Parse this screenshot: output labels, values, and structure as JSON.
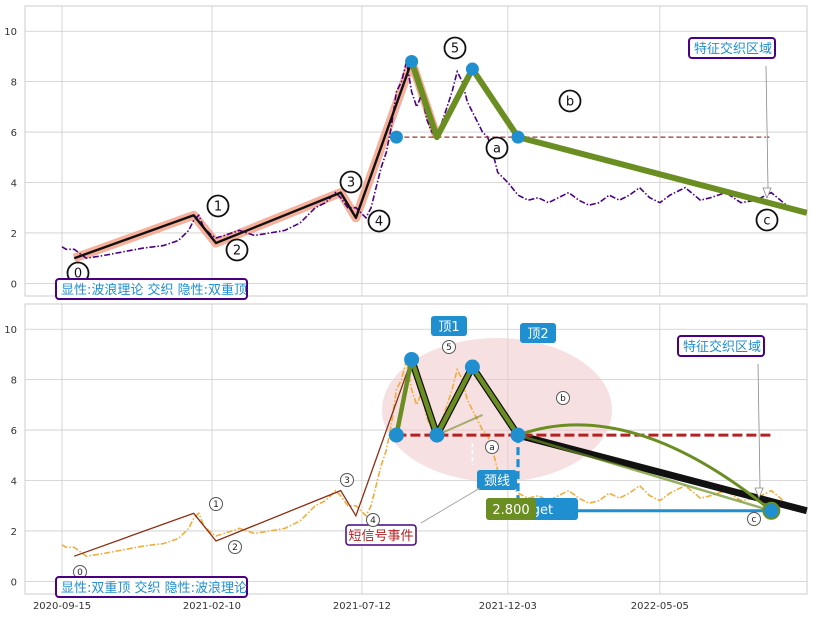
{
  "chart_data": [
    {
      "type": "line",
      "panel": "top",
      "ylim": [
        -0.5,
        11
      ],
      "yticks": [
        0,
        2,
        4,
        6,
        8,
        10
      ],
      "grid": true,
      "series": [
        {
          "style": "dash-dot",
          "color": "#4b0082",
          "x": [
            0,
            4,
            12,
            24,
            40,
            60,
            80,
            100,
            115,
            125,
            130,
            135,
            140,
            148,
            152,
            160,
            175,
            190,
            205,
            220,
            235,
            250,
            260,
            270,
            275,
            282,
            290,
            300,
            305,
            310,
            315,
            320,
            325,
            330,
            335,
            340,
            345,
            350,
            355,
            360,
            365,
            370,
            375,
            380,
            385,
            390,
            395,
            400,
            405,
            410,
            415,
            420,
            425,
            430,
            440,
            450,
            460,
            470,
            480,
            490,
            500,
            510,
            520,
            530,
            540,
            550,
            560,
            570,
            580,
            590,
            600,
            615,
            630,
            640,
            655,
            670,
            685,
            700,
            715,
            725,
            735
          ],
          "y": [
            1.45,
            1.35,
            1.35,
            1.0,
            1.1,
            1.25,
            1.4,
            1.5,
            1.7,
            2.1,
            2.5,
            2.7,
            2.2,
            1.9,
            1.8,
            1.9,
            2.1,
            1.9,
            2.0,
            2.1,
            2.4,
            3.0,
            3.2,
            3.6,
            3.4,
            3.0,
            3.0,
            2.6,
            3.0,
            3.8,
            4.6,
            5.2,
            6.2,
            7.6,
            8.0,
            8.8,
            7.6,
            7.0,
            7.5,
            6.5,
            6.0,
            5.8,
            6.4,
            7.0,
            7.6,
            8.4,
            8.0,
            7.2,
            6.8,
            6.4,
            6.0,
            5.8,
            5.2,
            4.4,
            4.0,
            3.5,
            3.3,
            3.4,
            3.2,
            3.4,
            3.6,
            3.3,
            3.1,
            3.2,
            3.5,
            3.3,
            3.5,
            3.8,
            3.4,
            3.2,
            3.5,
            3.8,
            3.3,
            3.4,
            3.6,
            3.2,
            3.3,
            3.6,
            3.1,
            2.9,
            2.8
          ]
        },
        {
          "style": "wave-path",
          "color": "#111111",
          "x": [
            12,
            130,
            152,
            275,
            290,
            345,
            370,
            405,
            450
          ],
          "y": [
            1.0,
            2.7,
            1.6,
            3.6,
            2.6,
            8.8,
            5.8,
            8.5,
            5.8
          ]
        },
        {
          "style": "pattern-path",
          "color": "#6b8e23",
          "x": [
            345,
            370,
            405,
            450,
            735
          ],
          "y": [
            8.8,
            5.8,
            8.5,
            5.8,
            2.8
          ]
        }
      ],
      "neckline": 5.8,
      "key_points": [
        {
          "x": 330,
          "y": 5.8
        },
        {
          "x": 345,
          "y": 8.8
        },
        {
          "x": 405,
          "y": 8.5
        },
        {
          "x": 450,
          "y": 5.8
        }
      ],
      "wave_labels": [
        "0",
        "1",
        "2",
        "3",
        "4",
        "5",
        "a",
        "b",
        "c"
      ],
      "box_label": "显性:波浪理论 交织 隐性:双重顶",
      "callout": "特征交织区域"
    },
    {
      "type": "line",
      "panel": "bottom",
      "ylim": [
        -0.5,
        11
      ],
      "yticks": [
        0,
        2,
        4,
        6,
        8,
        10
      ],
      "xticks": [
        "2020-09-15",
        "2021-02-10",
        "2021-07-12",
        "2021-12-03",
        "2022-05-05"
      ],
      "grid": true,
      "neckline": 5.8,
      "peaks": [
        {
          "label": "顶1",
          "x": 345,
          "y": 8.8
        },
        {
          "label": "顶2",
          "x": 405,
          "y": 8.5
        }
      ],
      "neck_label": "颈线",
      "signal_label": "短信号事件",
      "target_value": "2.800",
      "target_text": "Target",
      "wave_labels": [
        "0",
        "1",
        "2",
        "3",
        "4",
        "5",
        "a",
        "b",
        "c"
      ],
      "box_label": "显性:双重顶 交织 隐性:波浪理论",
      "callout": "特征交织区域"
    }
  ],
  "colors": {
    "grid": "#cccccc",
    "price_top": "#4b0082",
    "price_bottom": "#f0ad3a",
    "wave": "#111111",
    "wave_glow": "#f4a28a",
    "pattern": "#6b8e23",
    "point": "#1f8fcf",
    "neck_top": "#a0302f",
    "neck_bottom": "#b22222",
    "box_border": "#4b0082",
    "box_text": "#1f8fcf",
    "signal_text": "#b22222",
    "ellipse": "#f1c7cb"
  }
}
